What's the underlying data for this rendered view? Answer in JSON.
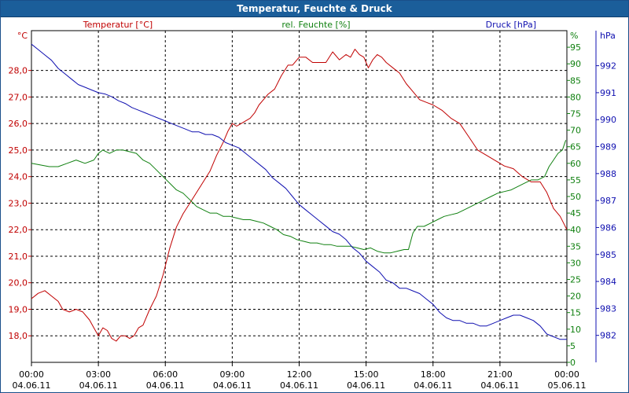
{
  "chart_data": {
    "type": "line",
    "title": "Temperatur, Feuchte & Druck",
    "x_ticks": [
      {
        "t": 0,
        "time": "00:00",
        "date": "04.06.11"
      },
      {
        "t": 3,
        "time": "03:00",
        "date": "04.06.11"
      },
      {
        "t": 6,
        "time": "06:00",
        "date": "04.06.11"
      },
      {
        "t": 9,
        "time": "09:00",
        "date": "04.06.11"
      },
      {
        "t": 12,
        "time": "12:00",
        "date": "04.06.11"
      },
      {
        "t": 15,
        "time": "15:00",
        "date": "04.06.11"
      },
      {
        "t": 18,
        "time": "18:00",
        "date": "04.06.11"
      },
      {
        "t": 21,
        "time": "21:00",
        "date": "04.06.11"
      },
      {
        "t": 24,
        "time": "00:00",
        "date": "05.06.11"
      }
    ],
    "xlim": [
      0,
      24
    ],
    "axes": {
      "temperature": {
        "label": "Temperatur [°C]",
        "unit": "°C",
        "color": "#c00000",
        "ylim": [
          17.0,
          29.5
        ],
        "ticks": [
          "18,0",
          "19,0",
          "20,0",
          "21,0",
          "22,0",
          "23,0",
          "24,0",
          "25,0",
          "26,0",
          "27,0",
          "28,0"
        ],
        "tick_values": [
          18,
          19,
          20,
          21,
          22,
          23,
          24,
          25,
          26,
          27,
          28
        ]
      },
      "humidity": {
        "label": "rel. Feuchte [%]",
        "unit": "%",
        "color": "#108010",
        "ylim": [
          0,
          100
        ],
        "ticks": [
          "0",
          "5",
          "10",
          "15",
          "20",
          "25",
          "30",
          "35",
          "40",
          "45",
          "50",
          "55",
          "60",
          "65",
          "70",
          "75",
          "80",
          "85",
          "90",
          "95"
        ],
        "tick_values": [
          0,
          5,
          10,
          15,
          20,
          25,
          30,
          35,
          40,
          45,
          50,
          55,
          60,
          65,
          70,
          75,
          80,
          85,
          90,
          95
        ]
      },
      "pressure": {
        "label": "Druck [hPa]",
        "unit": "hPa",
        "color": "#1010b0",
        "ylim": [
          981.0,
          993.3
        ],
        "ticks": [
          "982",
          "983",
          "984",
          "985",
          "986",
          "987",
          "988",
          "989",
          "990",
          "991",
          "992"
        ],
        "tick_values": [
          982,
          983,
          984,
          985,
          986,
          987,
          988,
          989,
          990,
          991,
          992
        ]
      }
    },
    "series": [
      {
        "name": "Temperatur [°C]",
        "axis": "temperature",
        "color": "#c00000",
        "x": [
          0,
          0.3,
          0.6,
          0.9,
          1.2,
          1.4,
          1.7,
          2.0,
          2.3,
          2.6,
          2.8,
          3.0,
          3.2,
          3.4,
          3.6,
          3.8,
          4.0,
          4.2,
          4.4,
          4.6,
          4.8,
          5.0,
          5.3,
          5.6,
          5.9,
          6.2,
          6.5,
          6.8,
          7.1,
          7.4,
          7.7,
          8.0,
          8.3,
          8.6,
          8.8,
          9.0,
          9.2,
          9.4,
          9.6,
          9.8,
          10.0,
          10.2,
          10.4,
          10.6,
          10.9,
          11.2,
          11.5,
          11.7,
          12.0,
          12.3,
          12.6,
          12.9,
          13.2,
          13.5,
          13.8,
          14.1,
          14.3,
          14.5,
          14.7,
          14.9,
          15.1,
          15.3,
          15.5,
          15.7,
          15.9,
          16.2,
          16.5,
          16.8,
          17.1,
          17.4,
          17.7,
          18.0,
          18.4,
          18.8,
          19.2,
          19.6,
          20.0,
          20.4,
          20.8,
          21.2,
          21.6,
          22.0,
          22.4,
          22.8,
          23.1,
          23.4,
          23.7,
          24.0
        ],
        "values": [
          19.4,
          19.6,
          19.7,
          19.5,
          19.3,
          19.0,
          18.9,
          19.0,
          18.9,
          18.6,
          18.3,
          18.0,
          18.3,
          18.2,
          17.9,
          17.8,
          18.0,
          18.0,
          17.9,
          18.0,
          18.3,
          18.4,
          19.0,
          19.5,
          20.3,
          21.3,
          22.1,
          22.6,
          23.0,
          23.4,
          23.8,
          24.2,
          24.8,
          25.3,
          25.7,
          26.0,
          25.9,
          26.0,
          26.1,
          26.2,
          26.4,
          26.7,
          26.9,
          27.1,
          27.3,
          27.8,
          28.2,
          28.2,
          28.5,
          28.5,
          28.3,
          28.3,
          28.3,
          28.7,
          28.4,
          28.6,
          28.5,
          28.8,
          28.6,
          28.5,
          28.1,
          28.4,
          28.6,
          28.5,
          28.3,
          28.1,
          27.9,
          27.5,
          27.2,
          26.9,
          26.8,
          26.7,
          26.5,
          26.2,
          26.0,
          25.5,
          25.0,
          24.8,
          24.6,
          24.4,
          24.3,
          24.0,
          23.8,
          23.8,
          23.4,
          22.8,
          22.5,
          22.0
        ]
      },
      {
        "name": "rel. Feuchte [%]",
        "axis": "humidity",
        "color": "#108010",
        "x": [
          0,
          0.4,
          0.8,
          1.2,
          1.6,
          2.0,
          2.4,
          2.8,
          3.0,
          3.2,
          3.5,
          3.8,
          4.1,
          4.4,
          4.7,
          5.0,
          5.3,
          5.6,
          5.9,
          6.2,
          6.5,
          6.8,
          7.1,
          7.4,
          7.7,
          8.0,
          8.3,
          8.6,
          8.9,
          9.2,
          9.5,
          9.8,
          10.1,
          10.4,
          10.7,
          11.0,
          11.3,
          11.6,
          11.9,
          12.2,
          12.5,
          12.8,
          13.1,
          13.4,
          13.7,
          14.0,
          14.3,
          14.6,
          14.9,
          15.2,
          15.5,
          15.8,
          16.1,
          16.4,
          16.7,
          16.9,
          17.1,
          17.3,
          17.6,
          17.9,
          18.2,
          18.5,
          18.8,
          19.1,
          19.4,
          19.7,
          20.0,
          20.3,
          20.6,
          20.9,
          21.2,
          21.5,
          21.8,
          22.1,
          22.4,
          22.7,
          23.0,
          23.2,
          23.4,
          23.6,
          23.8,
          23.95
        ],
        "values": [
          60,
          59.5,
          59,
          59,
          60,
          61,
          60,
          61,
          63,
          64,
          63,
          64,
          64,
          63.5,
          63,
          61,
          60,
          58,
          56,
          54,
          52,
          51,
          49,
          47,
          46,
          45,
          45,
          44,
          44,
          43.5,
          43,
          43,
          42.5,
          42,
          41,
          40,
          38.5,
          38,
          37,
          36.5,
          36,
          36,
          35.5,
          35.5,
          35,
          35,
          35,
          34.5,
          34,
          34.5,
          33.5,
          33,
          33,
          33.5,
          34,
          34,
          39,
          41,
          41,
          42,
          43,
          44,
          44.5,
          45,
          46,
          47,
          48,
          49,
          50,
          51,
          51.5,
          52,
          53,
          54,
          55,
          55,
          56,
          59,
          61,
          63,
          64,
          67
        ]
      },
      {
        "name": "Druck [hPa]",
        "axis": "pressure",
        "color": "#1010b0",
        "x": [
          0,
          0.3,
          0.6,
          0.9,
          1.2,
          1.5,
          1.8,
          2.1,
          2.4,
          2.7,
          3.0,
          3.3,
          3.6,
          3.9,
          4.2,
          4.5,
          4.8,
          5.1,
          5.4,
          5.7,
          6.0,
          6.3,
          6.6,
          6.9,
          7.2,
          7.5,
          7.8,
          8.1,
          8.4,
          8.7,
          9.0,
          9.3,
          9.6,
          9.9,
          10.2,
          10.5,
          10.8,
          11.1,
          11.4,
          11.7,
          12.0,
          12.3,
          12.6,
          12.9,
          13.2,
          13.5,
          13.8,
          14.1,
          14.4,
          14.7,
          15.0,
          15.3,
          15.6,
          15.9,
          16.2,
          16.5,
          16.8,
          17.1,
          17.4,
          17.7,
          18.0,
          18.3,
          18.6,
          18.9,
          19.2,
          19.5,
          19.8,
          20.1,
          20.4,
          20.7,
          21.0,
          21.3,
          21.6,
          21.9,
          22.2,
          22.5,
          22.8,
          23.1,
          23.4,
          23.7,
          24.0
        ],
        "values": [
          992.8,
          992.6,
          992.4,
          992.2,
          991.9,
          991.7,
          991.5,
          991.3,
          991.2,
          991.1,
          991.0,
          990.95,
          990.85,
          990.7,
          990.6,
          990.45,
          990.35,
          990.25,
          990.15,
          990.05,
          989.95,
          989.85,
          989.75,
          989.65,
          989.55,
          989.55,
          989.45,
          989.45,
          989.35,
          989.15,
          989.05,
          988.95,
          988.75,
          988.55,
          988.35,
          988.15,
          987.85,
          987.65,
          987.45,
          987.15,
          986.85,
          986.65,
          986.45,
          986.25,
          986.05,
          985.85,
          985.75,
          985.55,
          985.25,
          985.05,
          984.75,
          984.55,
          984.35,
          984.05,
          983.95,
          983.75,
          983.75,
          983.65,
          983.55,
          983.35,
          983.15,
          982.85,
          982.65,
          982.55,
          982.55,
          982.45,
          982.45,
          982.35,
          982.35,
          982.45,
          982.55,
          982.65,
          982.75,
          982.75,
          982.65,
          982.55,
          982.35,
          982.05,
          981.95,
          981.85,
          981.85
        ]
      }
    ]
  }
}
